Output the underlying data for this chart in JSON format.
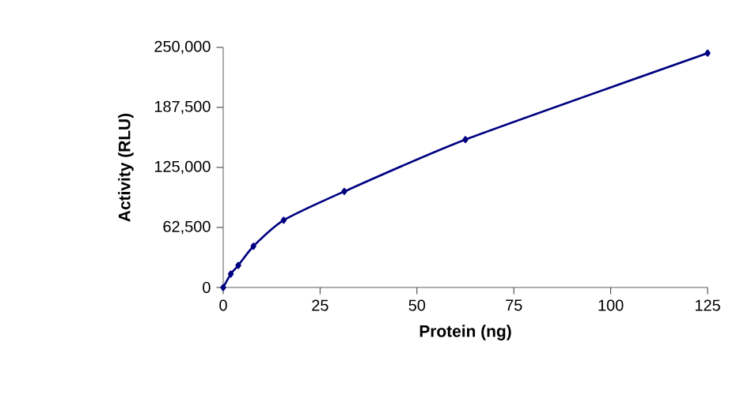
{
  "chart_data": {
    "type": "line",
    "xlabel": "Protein (ng)",
    "ylabel": "Activity (RLU)",
    "x": [
      0,
      1.95,
      3.9,
      7.8,
      15.6,
      31.25,
      62.5,
      125
    ],
    "series": [
      {
        "color": "#000080",
        "values": [
          0,
          14000,
          23000,
          43000,
          70000,
          100000,
          154000,
          244000
        ]
      }
    ],
    "xlim": [
      0,
      125
    ],
    "ylim": [
      0,
      250000
    ],
    "xticks": [
      0,
      25,
      50,
      75,
      100,
      125
    ],
    "yticks": [
      {
        "value": 0,
        "label": "0"
      },
      {
        "value": 62500,
        "label": "62,500"
      },
      {
        "value": 125000,
        "label": "125,000"
      },
      {
        "value": 187500,
        "label": "187,500"
      },
      {
        "value": 250000,
        "label": "250,000"
      }
    ],
    "marker": "diamond",
    "grid": false
  }
}
